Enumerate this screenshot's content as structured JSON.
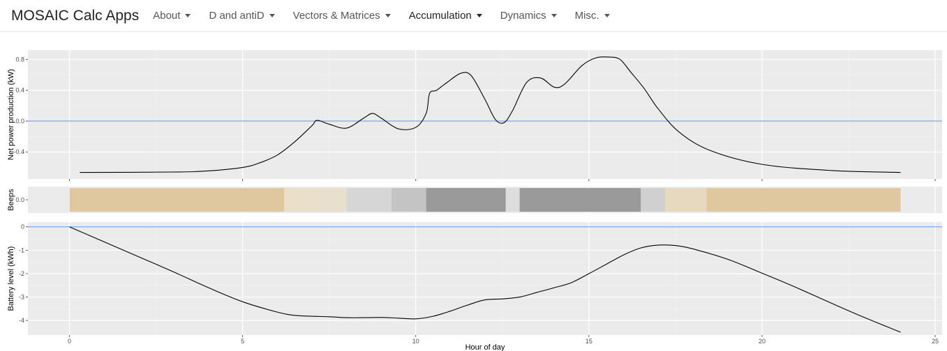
{
  "navbar": {
    "brand": "MOSAIC Calc Apps",
    "items": [
      {
        "label": "About"
      },
      {
        "label": "D and antiD"
      },
      {
        "label": "Vectors & Matrices"
      },
      {
        "label": "Accumulation",
        "active": true
      },
      {
        "label": "Dynamics"
      },
      {
        "label": "Misc."
      }
    ]
  },
  "chart_data": [
    {
      "type": "line",
      "panel": "top",
      "ylabel": "Net power production (kW)",
      "xlim": [
        -1.2,
        25.2
      ],
      "ylim": [
        -0.75,
        0.92
      ],
      "y_ticks": [
        0.8,
        0.4,
        0.0,
        -0.4
      ],
      "y_tick_labels": [
        "0.8",
        "0.4",
        "0.0",
        "-0.4"
      ],
      "x_ticks": [
        0,
        5,
        10,
        15,
        20,
        25
      ],
      "reference_line": {
        "y": 0.0,
        "color": "#5b8ff0"
      },
      "line_color": "#000000",
      "panel_background": "#ebebeb",
      "series": [
        {
          "x": [
            0.3,
            3,
            4,
            5,
            5.5,
            6,
            6.5,
            7,
            7.15,
            7.5,
            8,
            8.5,
            8.75,
            9,
            9.5,
            10,
            10.3,
            10.4,
            10.6,
            10.9,
            11.3,
            11.6,
            12,
            12.3,
            12.55,
            12.8,
            13.2,
            13.6,
            14,
            14.3,
            14.8,
            15.2,
            15.6,
            15.9,
            16.2,
            16.6,
            17,
            17.6,
            18.5,
            20,
            22,
            24
          ]
        },
        {
          "y": [
            -0.665,
            -0.66,
            -0.645,
            -0.6,
            -0.54,
            -0.44,
            -0.27,
            -0.06,
            0.01,
            -0.04,
            -0.09,
            0.04,
            0.1,
            0.04,
            -0.1,
            -0.08,
            0.1,
            0.36,
            0.4,
            0.5,
            0.62,
            0.59,
            0.28,
            0.02,
            -0.02,
            0.14,
            0.5,
            0.56,
            0.44,
            0.48,
            0.72,
            0.82,
            0.83,
            0.8,
            0.64,
            0.42,
            0.16,
            -0.14,
            -0.38,
            -0.56,
            -0.64,
            -0.665
          ]
        }
      ]
    },
    {
      "type": "heatmap",
      "panel": "middle",
      "ylabel": "Beeps",
      "y_ticks": [
        0.0
      ],
      "y_tick_labels": [
        "0.0"
      ],
      "xlim": [
        -1.2,
        25.2
      ],
      "segments": [
        {
          "x0": 0,
          "x1": 6.2,
          "color": "#dfc8a0"
        },
        {
          "x0": 6.2,
          "x1": 7.1,
          "color": "#eadfc8"
        },
        {
          "x0": 7.1,
          "x1": 8.0,
          "color": "#e8e0cc"
        },
        {
          "x0": 8.0,
          "x1": 9.3,
          "color": "#d6d6d6"
        },
        {
          "x0": 9.3,
          "x1": 10.3,
          "color": "#c4c4c4"
        },
        {
          "x0": 10.3,
          "x1": 12.6,
          "color": "#9a9a9a"
        },
        {
          "x0": 12.6,
          "x1": 13.0,
          "color": "#dddddd"
        },
        {
          "x0": 13.0,
          "x1": 16.5,
          "color": "#9a9a9a"
        },
        {
          "x0": 16.5,
          "x1": 17.2,
          "color": "#d0d0d0"
        },
        {
          "x0": 17.2,
          "x1": 18.4,
          "color": "#e6d9bf"
        },
        {
          "x0": 18.4,
          "x1": 24,
          "color": "#dfc8a0"
        }
      ]
    },
    {
      "type": "line",
      "panel": "bottom",
      "xlabel": "Hour of day",
      "ylabel": "Battery level (kWh)",
      "xlim": [
        -1.2,
        25.2
      ],
      "ylim": [
        -4.62,
        0.2
      ],
      "x_ticks": [
        0,
        5,
        10,
        15,
        20,
        25
      ],
      "x_tick_labels": [
        "0",
        "5",
        "10",
        "15",
        "20",
        "25"
      ],
      "y_ticks": [
        0,
        -1,
        -2,
        -3,
        -4
      ],
      "y_tick_labels": [
        "0",
        "-1",
        "-2",
        "-3",
        "-4"
      ],
      "reference_line": {
        "y": 0,
        "color": "#5b8ff0"
      },
      "line_color": "#000000",
      "panel_background": "#ebebeb",
      "series": [
        {
          "x": [
            0,
            1,
            2,
            3,
            4,
            5,
            6,
            6.5,
            7,
            7.5,
            8,
            8.5,
            9,
            9.5,
            10,
            10.5,
            11,
            11.5,
            12,
            12.5,
            13,
            13.5,
            14,
            14.5,
            15,
            15.5,
            16,
            16.5,
            17,
            17.5,
            18,
            19,
            20,
            21,
            22,
            23,
            24
          ]
        },
        {
          "y": [
            0,
            -0.64,
            -1.28,
            -1.92,
            -2.59,
            -3.2,
            -3.64,
            -3.78,
            -3.82,
            -3.84,
            -3.88,
            -3.88,
            -3.87,
            -3.9,
            -3.93,
            -3.82,
            -3.6,
            -3.34,
            -3.12,
            -3.08,
            -3.0,
            -2.8,
            -2.6,
            -2.38,
            -2.0,
            -1.6,
            -1.2,
            -0.9,
            -0.78,
            -0.8,
            -0.94,
            -1.38,
            -1.98,
            -2.6,
            -3.26,
            -3.9,
            -4.5
          ]
        }
      ]
    }
  ]
}
